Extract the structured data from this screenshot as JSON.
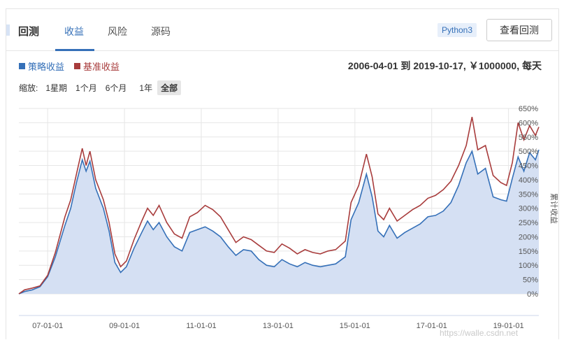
{
  "header": {
    "brand": "回测",
    "tabs": [
      {
        "label": "收益",
        "active": true
      },
      {
        "label": "风险",
        "active": false
      },
      {
        "label": "源码",
        "active": false
      }
    ],
    "language_badge": "Python3",
    "view_button": "查看回测"
  },
  "summary": {
    "text": "2006-04-01 到 2019-10-17, ￥1000000, 每天"
  },
  "zoom": {
    "label": "缩放:",
    "options": [
      {
        "label": "1星期",
        "selected": false
      },
      {
        "label": "1个月",
        "selected": false
      },
      {
        "label": "6个月",
        "selected": false
      },
      {
        "label": "1年",
        "selected": false
      },
      {
        "label": "全部",
        "selected": true
      }
    ]
  },
  "watermark": "https://walle.csdn.net",
  "chart_data": {
    "type": "area",
    "ylabel": "累计收益",
    "ylim": [
      0,
      650
    ],
    "ytick_labels": [
      "0%",
      "50%",
      "100%",
      "150%",
      "200%",
      "250%",
      "300%",
      "350%",
      "400%",
      "450%",
      "500%",
      "550%",
      "600%",
      "650%"
    ],
    "ytick_values": [
      0,
      50,
      100,
      150,
      200,
      250,
      300,
      350,
      400,
      450,
      500,
      550,
      600,
      650
    ],
    "xtick_labels": [
      "07-01-01",
      "09-01-01",
      "11-01-01",
      "13-01-01",
      "15-01-01",
      "17-01-01",
      "19-01-01"
    ],
    "xtick_years": [
      2007,
      2009,
      2011,
      2013,
      2015,
      2017,
      2019
    ],
    "xlim": [
      2006.25,
      2019.79
    ],
    "grid": true,
    "series": [
      {
        "name": "策略收益",
        "color": "#3570b8",
        "fill": "#d5e0f3",
        "points": [
          [
            2006.25,
            0
          ],
          [
            2006.4,
            8
          ],
          [
            2006.6,
            14
          ],
          [
            2006.8,
            25
          ],
          [
            2007.0,
            60
          ],
          [
            2007.2,
            130
          ],
          [
            2007.45,
            240
          ],
          [
            2007.6,
            300
          ],
          [
            2007.75,
            390
          ],
          [
            2007.9,
            470
          ],
          [
            2008.0,
            430
          ],
          [
            2008.1,
            465
          ],
          [
            2008.25,
            370
          ],
          [
            2008.45,
            300
          ],
          [
            2008.6,
            220
          ],
          [
            2008.75,
            110
          ],
          [
            2008.9,
            75
          ],
          [
            2009.05,
            95
          ],
          [
            2009.25,
            160
          ],
          [
            2009.45,
            215
          ],
          [
            2009.6,
            255
          ],
          [
            2009.75,
            225
          ],
          [
            2009.9,
            250
          ],
          [
            2010.1,
            200
          ],
          [
            2010.3,
            165
          ],
          [
            2010.5,
            150
          ],
          [
            2010.7,
            215
          ],
          [
            2010.9,
            225
          ],
          [
            2011.1,
            235
          ],
          [
            2011.3,
            220
          ],
          [
            2011.5,
            200
          ],
          [
            2011.7,
            165
          ],
          [
            2011.9,
            135
          ],
          [
            2012.1,
            155
          ],
          [
            2012.3,
            150
          ],
          [
            2012.5,
            120
          ],
          [
            2012.7,
            100
          ],
          [
            2012.9,
            95
          ],
          [
            2013.1,
            120
          ],
          [
            2013.3,
            105
          ],
          [
            2013.5,
            95
          ],
          [
            2013.7,
            110
          ],
          [
            2013.9,
            100
          ],
          [
            2014.1,
            95
          ],
          [
            2014.3,
            100
          ],
          [
            2014.5,
            105
          ],
          [
            2014.75,
            130
          ],
          [
            2014.9,
            260
          ],
          [
            2015.1,
            320
          ],
          [
            2015.3,
            420
          ],
          [
            2015.45,
            340
          ],
          [
            2015.6,
            220
          ],
          [
            2015.75,
            200
          ],
          [
            2015.9,
            240
          ],
          [
            2016.1,
            195
          ],
          [
            2016.3,
            215
          ],
          [
            2016.5,
            230
          ],
          [
            2016.7,
            245
          ],
          [
            2016.9,
            270
          ],
          [
            2017.1,
            275
          ],
          [
            2017.3,
            290
          ],
          [
            2017.5,
            320
          ],
          [
            2017.7,
            380
          ],
          [
            2017.9,
            460
          ],
          [
            2018.05,
            500
          ],
          [
            2018.2,
            420
          ],
          [
            2018.4,
            440
          ],
          [
            2018.6,
            340
          ],
          [
            2018.8,
            330
          ],
          [
            2018.95,
            325
          ],
          [
            2019.1,
            405
          ],
          [
            2019.25,
            480
          ],
          [
            2019.4,
            430
          ],
          [
            2019.55,
            495
          ],
          [
            2019.7,
            470
          ],
          [
            2019.79,
            505
          ]
        ]
      },
      {
        "name": "基准收益",
        "color": "#a83c3c",
        "points": [
          [
            2006.25,
            0
          ],
          [
            2006.4,
            14
          ],
          [
            2006.6,
            20
          ],
          [
            2006.8,
            28
          ],
          [
            2007.0,
            65
          ],
          [
            2007.2,
            145
          ],
          [
            2007.45,
            270
          ],
          [
            2007.6,
            330
          ],
          [
            2007.75,
            420
          ],
          [
            2007.9,
            510
          ],
          [
            2008.0,
            450
          ],
          [
            2008.1,
            500
          ],
          [
            2008.25,
            400
          ],
          [
            2008.45,
            330
          ],
          [
            2008.6,
            250
          ],
          [
            2008.75,
            140
          ],
          [
            2008.9,
            95
          ],
          [
            2009.05,
            115
          ],
          [
            2009.25,
            190
          ],
          [
            2009.45,
            255
          ],
          [
            2009.6,
            300
          ],
          [
            2009.75,
            275
          ],
          [
            2009.9,
            310
          ],
          [
            2010.1,
            250
          ],
          [
            2010.3,
            210
          ],
          [
            2010.5,
            195
          ],
          [
            2010.7,
            270
          ],
          [
            2010.9,
            285
          ],
          [
            2011.1,
            310
          ],
          [
            2011.3,
            295
          ],
          [
            2011.5,
            270
          ],
          [
            2011.7,
            225
          ],
          [
            2011.9,
            180
          ],
          [
            2012.1,
            200
          ],
          [
            2012.3,
            190
          ],
          [
            2012.5,
            170
          ],
          [
            2012.7,
            150
          ],
          [
            2012.9,
            145
          ],
          [
            2013.1,
            175
          ],
          [
            2013.3,
            160
          ],
          [
            2013.5,
            140
          ],
          [
            2013.7,
            155
          ],
          [
            2013.9,
            145
          ],
          [
            2014.1,
            140
          ],
          [
            2014.3,
            150
          ],
          [
            2014.5,
            155
          ],
          [
            2014.75,
            185
          ],
          [
            2014.9,
            320
          ],
          [
            2015.1,
            380
          ],
          [
            2015.3,
            490
          ],
          [
            2015.45,
            410
          ],
          [
            2015.6,
            280
          ],
          [
            2015.75,
            260
          ],
          [
            2015.9,
            300
          ],
          [
            2016.1,
            255
          ],
          [
            2016.3,
            275
          ],
          [
            2016.5,
            295
          ],
          [
            2016.7,
            310
          ],
          [
            2016.9,
            335
          ],
          [
            2017.1,
            345
          ],
          [
            2017.3,
            365
          ],
          [
            2017.5,
            395
          ],
          [
            2017.7,
            450
          ],
          [
            2017.9,
            520
          ],
          [
            2018.05,
            620
          ],
          [
            2018.2,
            505
          ],
          [
            2018.4,
            520
          ],
          [
            2018.6,
            415
          ],
          [
            2018.8,
            390
          ],
          [
            2018.95,
            380
          ],
          [
            2019.1,
            460
          ],
          [
            2019.25,
            600
          ],
          [
            2019.4,
            540
          ],
          [
            2019.55,
            590
          ],
          [
            2019.7,
            555
          ],
          [
            2019.79,
            585
          ]
        ]
      }
    ]
  }
}
